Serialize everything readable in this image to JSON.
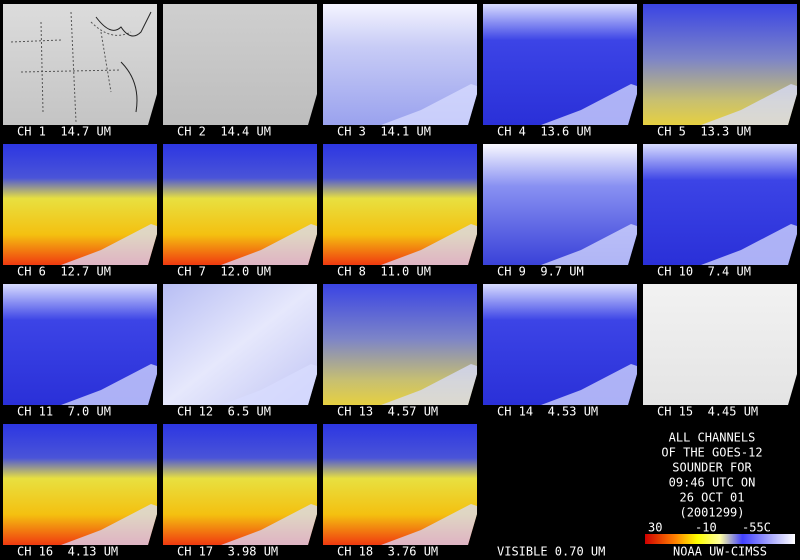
{
  "panels": [
    {
      "label": "CH 1  14.7 UM"
    },
    {
      "label": "CH 2  14.4 UM"
    },
    {
      "label": "CH 3  14.1 UM"
    },
    {
      "label": "CH 4  13.6 UM"
    },
    {
      "label": "CH 5  13.3 UM"
    },
    {
      "label": "CH 6  12.7 UM"
    },
    {
      "label": "CH 7  12.0 UM"
    },
    {
      "label": "CH 8  11.0 UM"
    },
    {
      "label": "CH 9  9.7 UM"
    },
    {
      "label": "CH 10  7.4 UM"
    },
    {
      "label": "CH 11  7.0 UM"
    },
    {
      "label": "CH 12  6.5 UM"
    },
    {
      "label": "CH 13  4.57 UM"
    },
    {
      "label": "CH 14  4.53 UM"
    },
    {
      "label": "CH 15  4.45 UM"
    },
    {
      "label": "CH 16  4.13 UM"
    },
    {
      "label": "CH 17  3.98 UM"
    },
    {
      "label": "CH 18  3.76 UM"
    },
    {
      "label": "VISIBLE 0.70 UM"
    }
  ],
  "caption": {
    "lines": [
      "ALL CHANNELS",
      "OF THE GOES-12",
      "SOUNDER FOR",
      "09:46 UTC ON",
      "26 OCT 01",
      "(2001299)"
    ]
  },
  "colorbar": {
    "labels": [
      "30",
      "-10",
      "-55C"
    ],
    "credit": "NOAA UW-CIMSS"
  }
}
